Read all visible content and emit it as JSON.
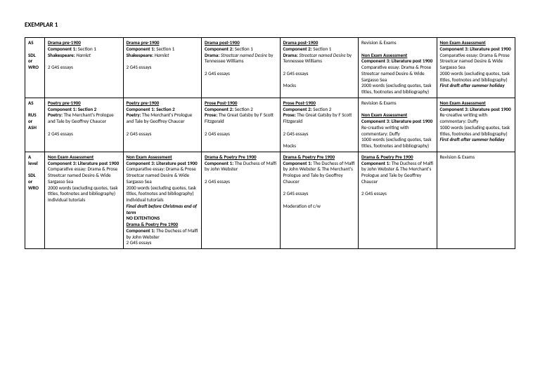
{
  "title": "EXEMPLAR 1",
  "rows": [
    {
      "label": [
        "AS",
        "",
        "SDL",
        "or",
        "WRO"
      ],
      "cells": [
        [
          {
            "cls": "b u",
            "text": "Drama pre-1900"
          },
          {
            "cls": "",
            "text": "<span class='b'>Component 1:</span> Section 1"
          },
          {
            "cls": "",
            "text": "<span class='b'>Shakespeare:</span> <span class='i'>Hamlet</span>"
          },
          {
            "cls": "",
            "text": "&nbsp;"
          },
          {
            "cls": "",
            "text": "2 G4S essays"
          }
        ],
        [
          {
            "cls": "b u",
            "text": "Drama pre-1900"
          },
          {
            "cls": "",
            "text": "<span class='b'>Component 1:</span> Section 1"
          },
          {
            "cls": "",
            "text": "<span class='b'>Shakespeare:</span> <span class='i'>Hamlet</span>"
          },
          {
            "cls": "",
            "text": "&nbsp;"
          },
          {
            "cls": "",
            "text": "2 G4S essays"
          }
        ],
        [
          {
            "cls": "b u",
            "text": "Drama post-1900"
          },
          {
            "cls": "",
            "text": "<span class='b'>Component 2:</span> Section 1"
          },
          {
            "cls": "",
            "text": "<span class='b'>Drama:</span> <span class='i'>Streetcar named Desire</span> by Tennessee Williams"
          },
          {
            "cls": "",
            "text": "&nbsp;"
          },
          {
            "cls": "",
            "text": "2 G4S essays"
          }
        ],
        [
          {
            "cls": "b u",
            "text": "Drama post-1900"
          },
          {
            "cls": "",
            "text": "<span class='b'>Component 2:</span> Section 1"
          },
          {
            "cls": "",
            "text": "<span class='b'>Drama:</span> <span class='i'>Streetcar named Desire</span> by Tennessee Williams"
          },
          {
            "cls": "",
            "text": "&nbsp;"
          },
          {
            "cls": "",
            "text": "2 G4S essays"
          },
          {
            "cls": "",
            "text": "&nbsp;"
          },
          {
            "cls": "",
            "text": "Mocks"
          }
        ],
        [
          {
            "cls": "",
            "text": "Revision & Exams"
          },
          {
            "cls": "",
            "text": "&nbsp;"
          },
          {
            "cls": "b u",
            "text": "Non Exam Assessment"
          },
          {
            "cls": "b",
            "text": "Component 3: Literature post 1900"
          },
          {
            "cls": "",
            "text": "Comparative essay: Drama & Prose"
          },
          {
            "cls": "",
            "text": "Streetcar named Desire & Wide Sargasso Sea"
          },
          {
            "cls": "",
            "text": "2000 words (excluding quotes, task titles, footnotes and bibliography)"
          }
        ],
        [
          {
            "cls": "b u",
            "text": "Non Exam Assessment"
          },
          {
            "cls": "b",
            "text": "Component 3: Literature post 1900"
          },
          {
            "cls": "",
            "text": "Comparative essay: Drama & Prose"
          },
          {
            "cls": "",
            "text": "Streetcar named Desire & Wide Sargasso Sea"
          },
          {
            "cls": "",
            "text": "2000 words (excluding quotes, task titles, footnotes and bibliography)"
          },
          {
            "cls": "bi",
            "text": "First draft after summer holiday"
          }
        ]
      ]
    },
    {
      "label": [
        "AS",
        "",
        "RUS",
        "or",
        "ASH"
      ],
      "cells": [
        [
          {
            "cls": "b u",
            "text": "Poetry pre-1900"
          },
          {
            "cls": "b",
            "text": "Component 1: Section 2"
          },
          {
            "cls": "",
            "text": "<span class='b'>Poetry:</span> The Merchant's Prologue and Tale by Geoffrey Chaucer"
          },
          {
            "cls": "",
            "text": "&nbsp;"
          },
          {
            "cls": "",
            "text": "2 G4S essays"
          }
        ],
        [
          {
            "cls": "b u",
            "text": "Poetry pre-1900"
          },
          {
            "cls": "b",
            "text": "Component 1: Section 2"
          },
          {
            "cls": "",
            "text": "<span class='b'>Poetry:</span> The Merchant's Prologue and Tale by Geoffrey Chaucer"
          },
          {
            "cls": "",
            "text": "&nbsp;"
          },
          {
            "cls": "",
            "text": "2 G4S essays"
          }
        ],
        [
          {
            "cls": "b u",
            "text": "Prose Post-1900"
          },
          {
            "cls": "",
            "text": "<span class='b'>Component 2:</span> Section 2"
          },
          {
            "cls": "",
            "text": "<span class='b'>Prose:</span> The Great Gatsby by F Scott Fitzgerald"
          },
          {
            "cls": "",
            "text": "&nbsp;"
          },
          {
            "cls": "",
            "text": "2 G4S essays"
          }
        ],
        [
          {
            "cls": "b u",
            "text": "Prose Post-1900"
          },
          {
            "cls": "",
            "text": "<span class='b'>Component 2:</span> Section 2"
          },
          {
            "cls": "",
            "text": "<span class='b'>Prose:</span> The Great Gatsby by F Scott Fitzgerald"
          },
          {
            "cls": "",
            "text": "&nbsp;"
          },
          {
            "cls": "",
            "text": "2 G4S essays"
          },
          {
            "cls": "",
            "text": "&nbsp;"
          },
          {
            "cls": "",
            "text": "Mocks"
          }
        ],
        [
          {
            "cls": "",
            "text": "Revision & Exams"
          },
          {
            "cls": "",
            "text": "&nbsp;"
          },
          {
            "cls": "b u",
            "text": "Non Exam Assessment"
          },
          {
            "cls": "b",
            "text": "Component 3: Literature post 1900"
          },
          {
            "cls": "",
            "text": "Re-creative writing with commentary: Duffy"
          },
          {
            "cls": "",
            "text": "1000 words (excluding quotes, task titles, footnotes and bibliography)"
          }
        ],
        [
          {
            "cls": "b u",
            "text": "Non Exam Assessment"
          },
          {
            "cls": "b",
            "text": "Component 3: Literature post 1900"
          },
          {
            "cls": "",
            "text": "Re-creative writing with commentary: Duffy"
          },
          {
            "cls": "",
            "text": "1000 words (excluding quotes, task titles, footnotes and bibliography)"
          },
          {
            "cls": "bi",
            "text": "First draft after summer holiday"
          }
        ]
      ]
    },
    {
      "label": [
        "A",
        "level",
        "",
        "SDL",
        "or",
        "WRO"
      ],
      "cells": [
        [
          {
            "cls": "b u",
            "text": "Non Exam Assessment"
          },
          {
            "cls": "b",
            "text": "Component 3: Literature post 1900"
          },
          {
            "cls": "",
            "text": "Comparative essay: Drama & Prose"
          },
          {
            "cls": "",
            "text": "Streetcar named Desire & Wide Sargasso Sea"
          },
          {
            "cls": "",
            "text": "2000 words (excluding quotes, task titles, footnotes and bibliography)"
          },
          {
            "cls": "",
            "text": "Individual tutorials"
          }
        ],
        [
          {
            "cls": "b u",
            "text": "Non Exam Assessment"
          },
          {
            "cls": "b",
            "text": "Component 3: Literature post 1900"
          },
          {
            "cls": "",
            "text": "Comparative essay: Drama & Prose"
          },
          {
            "cls": "",
            "text": "Streetcar named Desire & Wide Sargasso Sea"
          },
          {
            "cls": "",
            "text": "2000 words (excluding quotes, task titles, footnotes and bibliography)"
          },
          {
            "cls": "",
            "text": "Individual tutorials"
          },
          {
            "cls": "bi",
            "text": "Final draft before Christmas end of term"
          },
          {
            "cls": "b",
            "text": "NO EXTENTIONS"
          },
          {
            "cls": "b u",
            "text": "Drama & Poetry Pre 1900"
          },
          {
            "cls": "",
            "text": "<span class='b'>Component 1:</span> The Duchess of Malfi by John Webster"
          },
          {
            "cls": "",
            "text": "2 G4S essays"
          }
        ],
        [
          {
            "cls": "b u",
            "text": "Drama & Poetry Pre 1900"
          },
          {
            "cls": "",
            "text": "<span class='b'>Component 1:</span> The Duchess of Malfi by John Webster"
          },
          {
            "cls": "",
            "text": "&nbsp;"
          },
          {
            "cls": "",
            "text": "2 G4S essays"
          }
        ],
        [
          {
            "cls": "b u",
            "text": "Drama & Poetry Pre 1900"
          },
          {
            "cls": "",
            "text": "<span class='b'>Component 1:</span> The Duchess of Malfi by John Webster & The Merchant's Prologue and Tale by Geoffrey Chaucer"
          },
          {
            "cls": "",
            "text": "&nbsp;"
          },
          {
            "cls": "",
            "text": "2 G4S essays"
          },
          {
            "cls": "",
            "text": "&nbsp;"
          },
          {
            "cls": "",
            "text": "Moderation of c/w"
          }
        ],
        [
          {
            "cls": "b u",
            "text": "Drama & Poetry Pre 1900"
          },
          {
            "cls": "",
            "text": "<span class='b'>Component 1:</span> The Duchess of Malfi by John Webster & The Merchant's Prologue and Tale by Geoffrey Chaucer"
          },
          {
            "cls": "",
            "text": "&nbsp;"
          },
          {
            "cls": "",
            "text": "2 G4S essays"
          }
        ],
        [
          {
            "cls": "",
            "text": "Revision & Exams"
          }
        ]
      ]
    }
  ]
}
